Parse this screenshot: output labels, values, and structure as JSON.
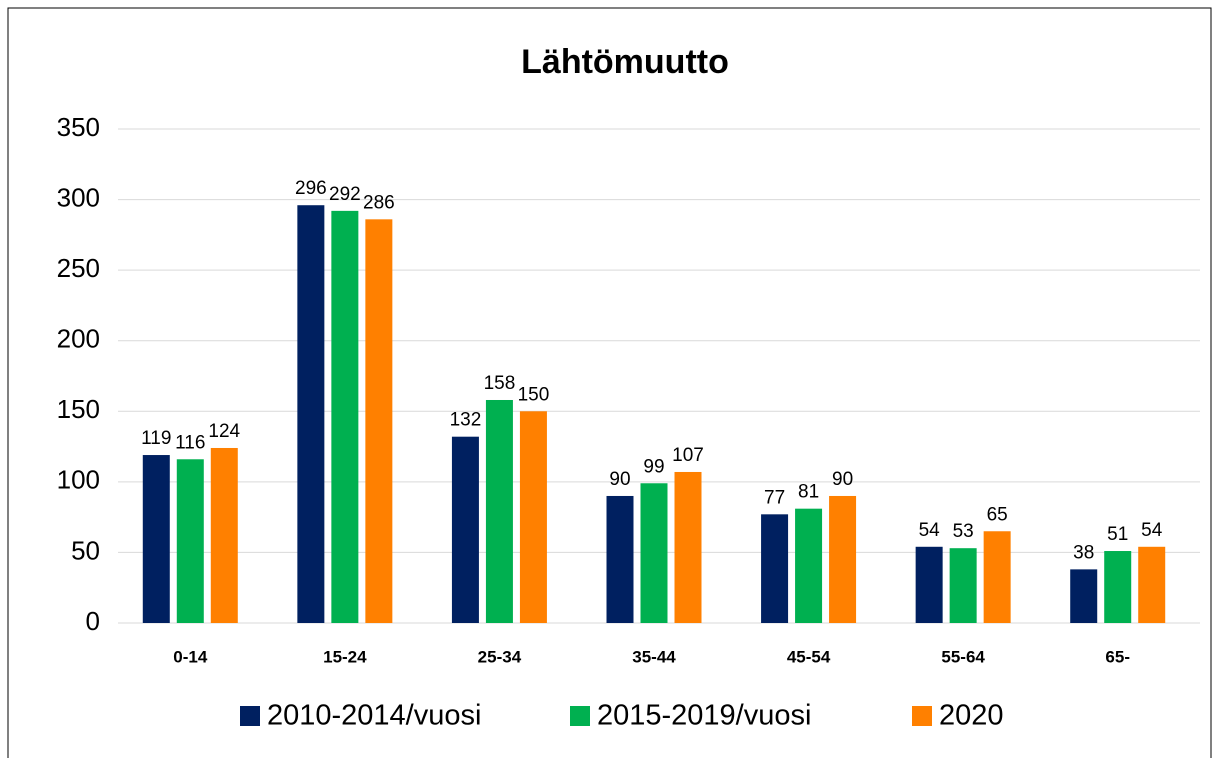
{
  "chart_data": {
    "type": "bar",
    "title": "Lähtömuutto",
    "categories": [
      "0-14",
      "15-24",
      "25-34",
      "35-44",
      "45-54",
      "55-64",
      "65-"
    ],
    "series": [
      {
        "name": "2010-2014/vuosi",
        "color": "#002060",
        "values": [
          119,
          296,
          132,
          90,
          77,
          54,
          38
        ]
      },
      {
        "name": "2015-2019/vuosi",
        "color": "#00b050",
        "values": [
          116,
          292,
          158,
          99,
          81,
          53,
          51
        ]
      },
      {
        "name": "2020",
        "color": "#ff8000",
        "values": [
          124,
          286,
          150,
          107,
          90,
          65,
          54
        ]
      }
    ],
    "ylim": [
      0,
      350
    ],
    "yticks": [
      0,
      50,
      100,
      150,
      200,
      250,
      300,
      350
    ],
    "grid": true,
    "legend": "bottom"
  }
}
